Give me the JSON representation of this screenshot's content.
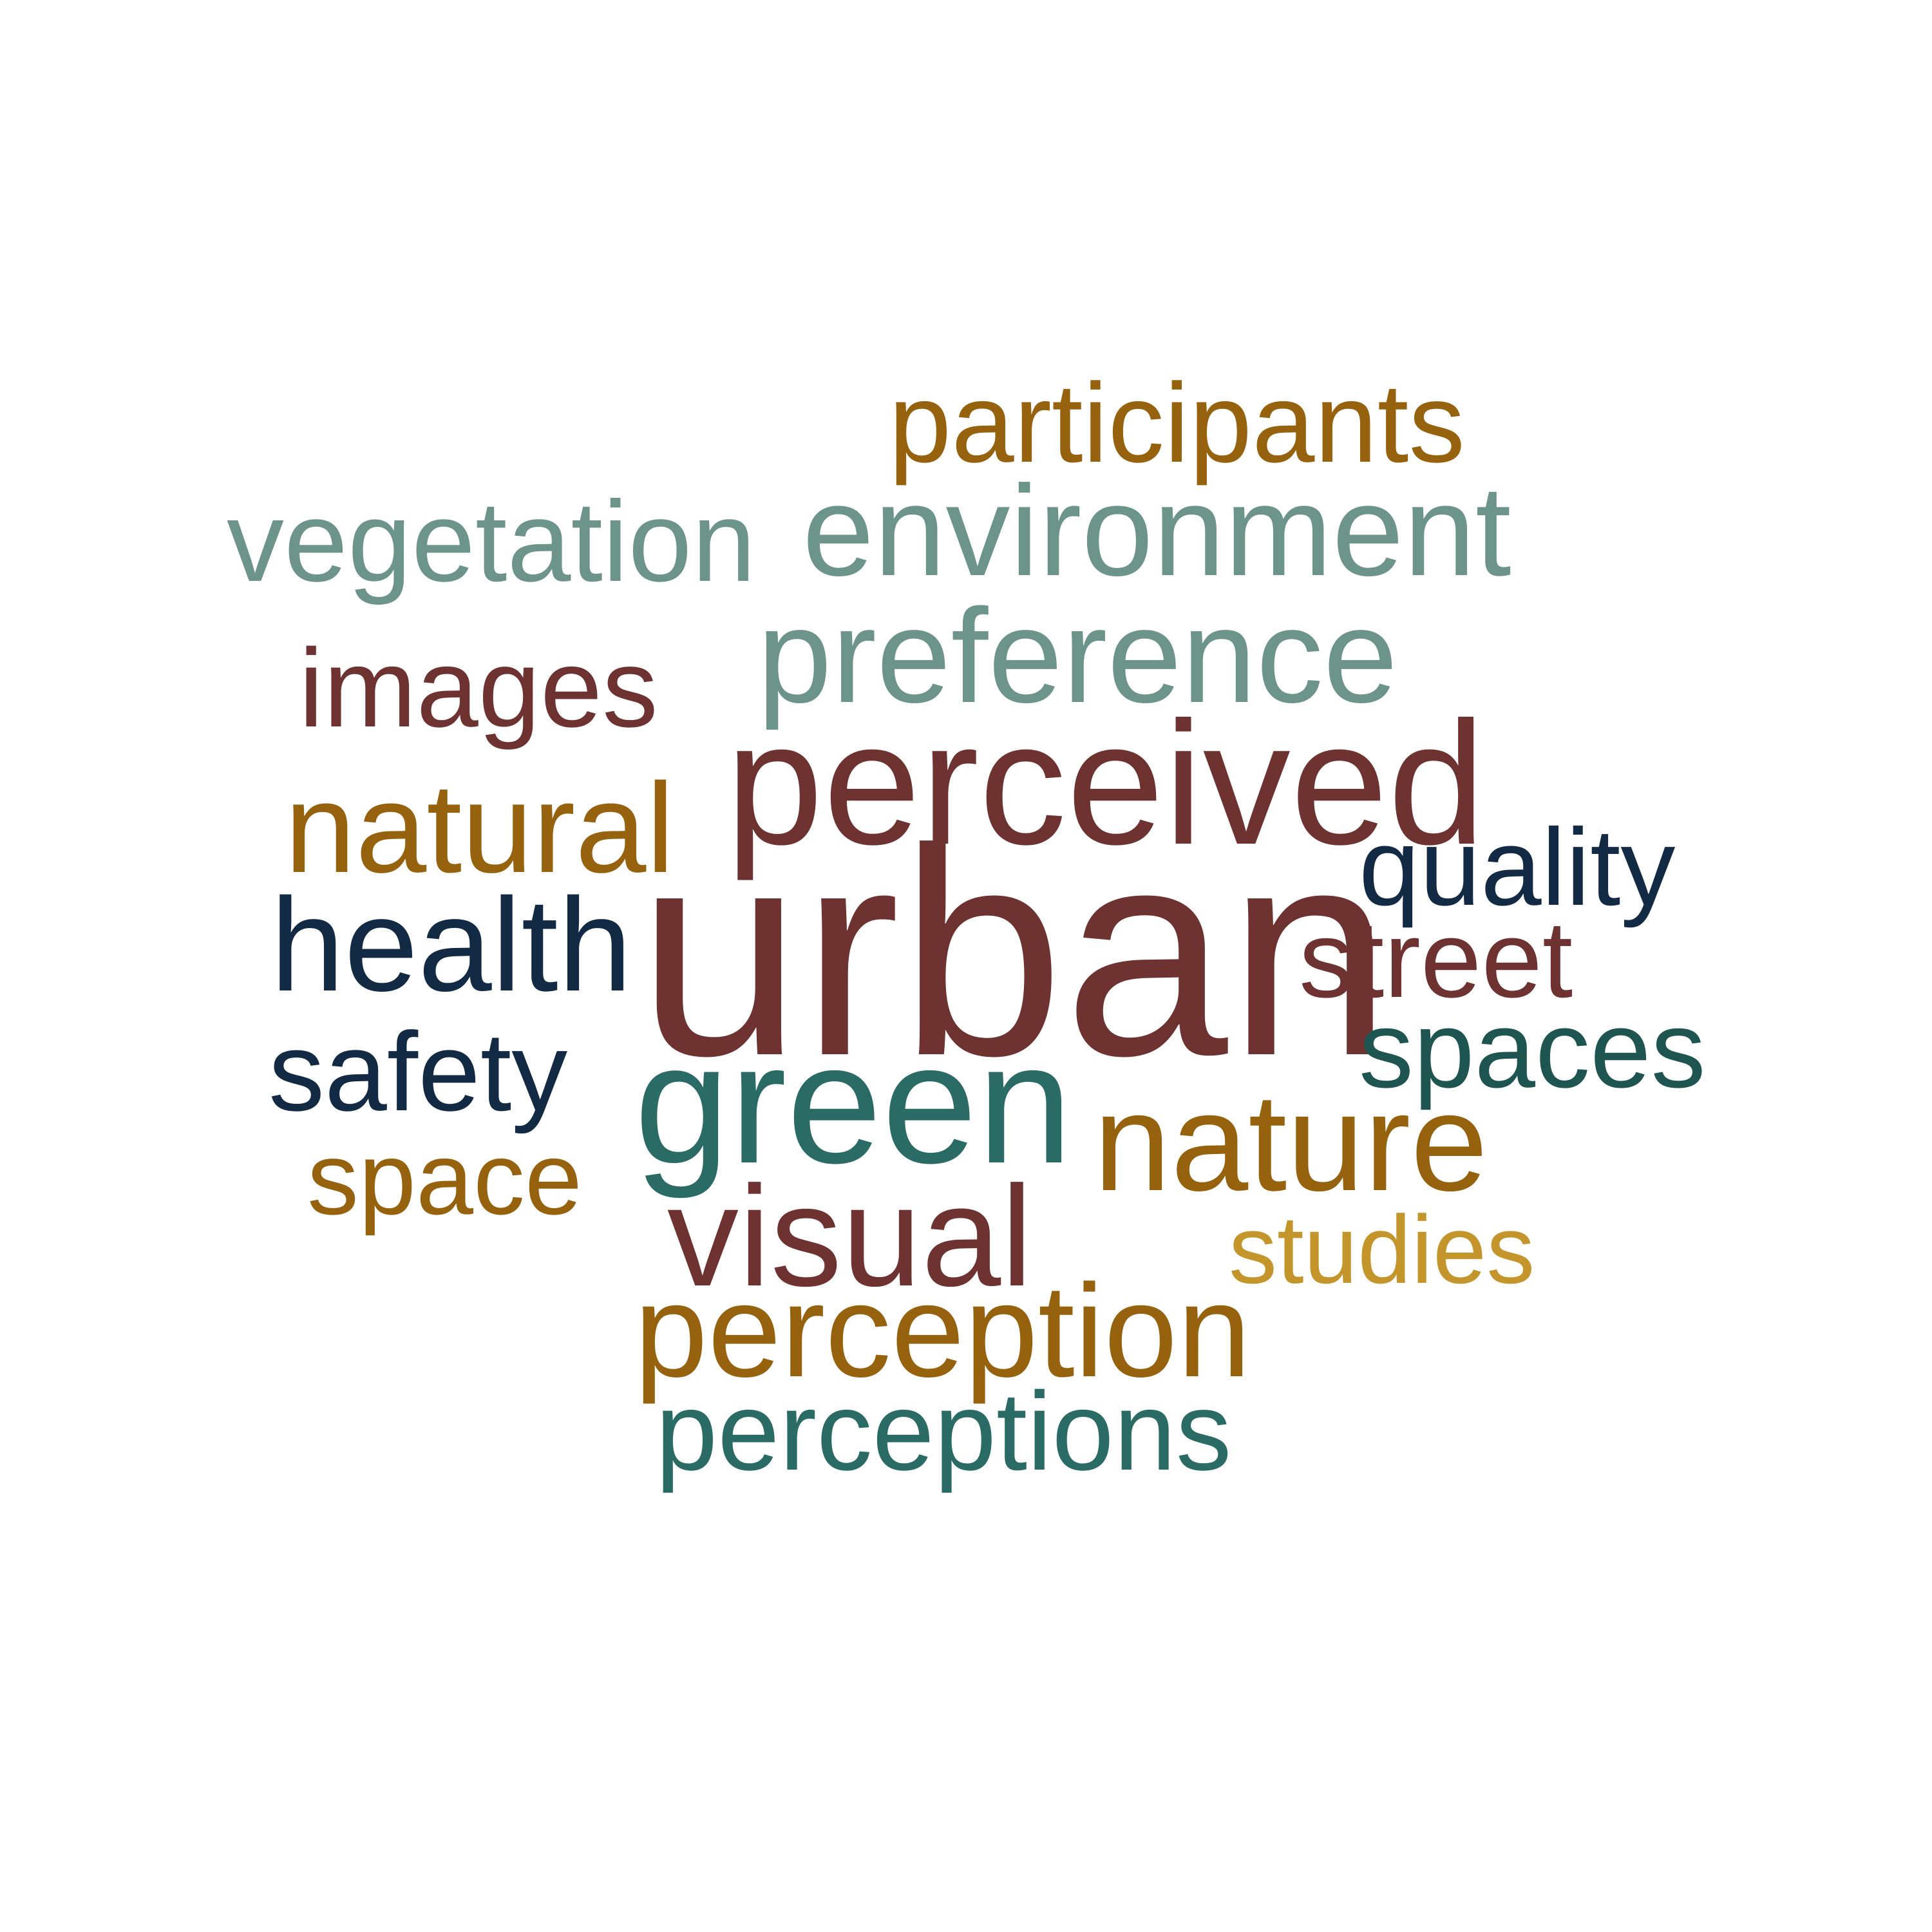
{
  "words": [
    {
      "text": "urban",
      "color": "#6e3230"
    },
    {
      "text": "green",
      "color": "#2b6b66"
    },
    {
      "text": "perceived",
      "color": "#6e3230"
    },
    {
      "text": "nature",
      "color": "#97620e"
    },
    {
      "text": "preference",
      "color": "#6d948a"
    },
    {
      "text": "environment",
      "color": "#6d948a"
    },
    {
      "text": "vegetation",
      "color": "#6d948a"
    },
    {
      "text": "participants",
      "color": "#97620e"
    },
    {
      "text": "images",
      "color": "#6e3230"
    },
    {
      "text": "natural",
      "color": "#97620e"
    },
    {
      "text": "health",
      "color": "#132a45"
    },
    {
      "text": "quality",
      "color": "#132a45"
    },
    {
      "text": "street",
      "color": "#6e3230"
    },
    {
      "text": "spaces",
      "color": "#1e5550"
    },
    {
      "text": "safety",
      "color": "#132a45"
    },
    {
      "text": "space",
      "color": "#97620e"
    },
    {
      "text": "visual",
      "color": "#6e3230"
    },
    {
      "text": "studies",
      "color": "#c4952a"
    },
    {
      "text": "perception",
      "color": "#97620e"
    },
    {
      "text": "perceptions",
      "color": "#2b6b66"
    }
  ]
}
